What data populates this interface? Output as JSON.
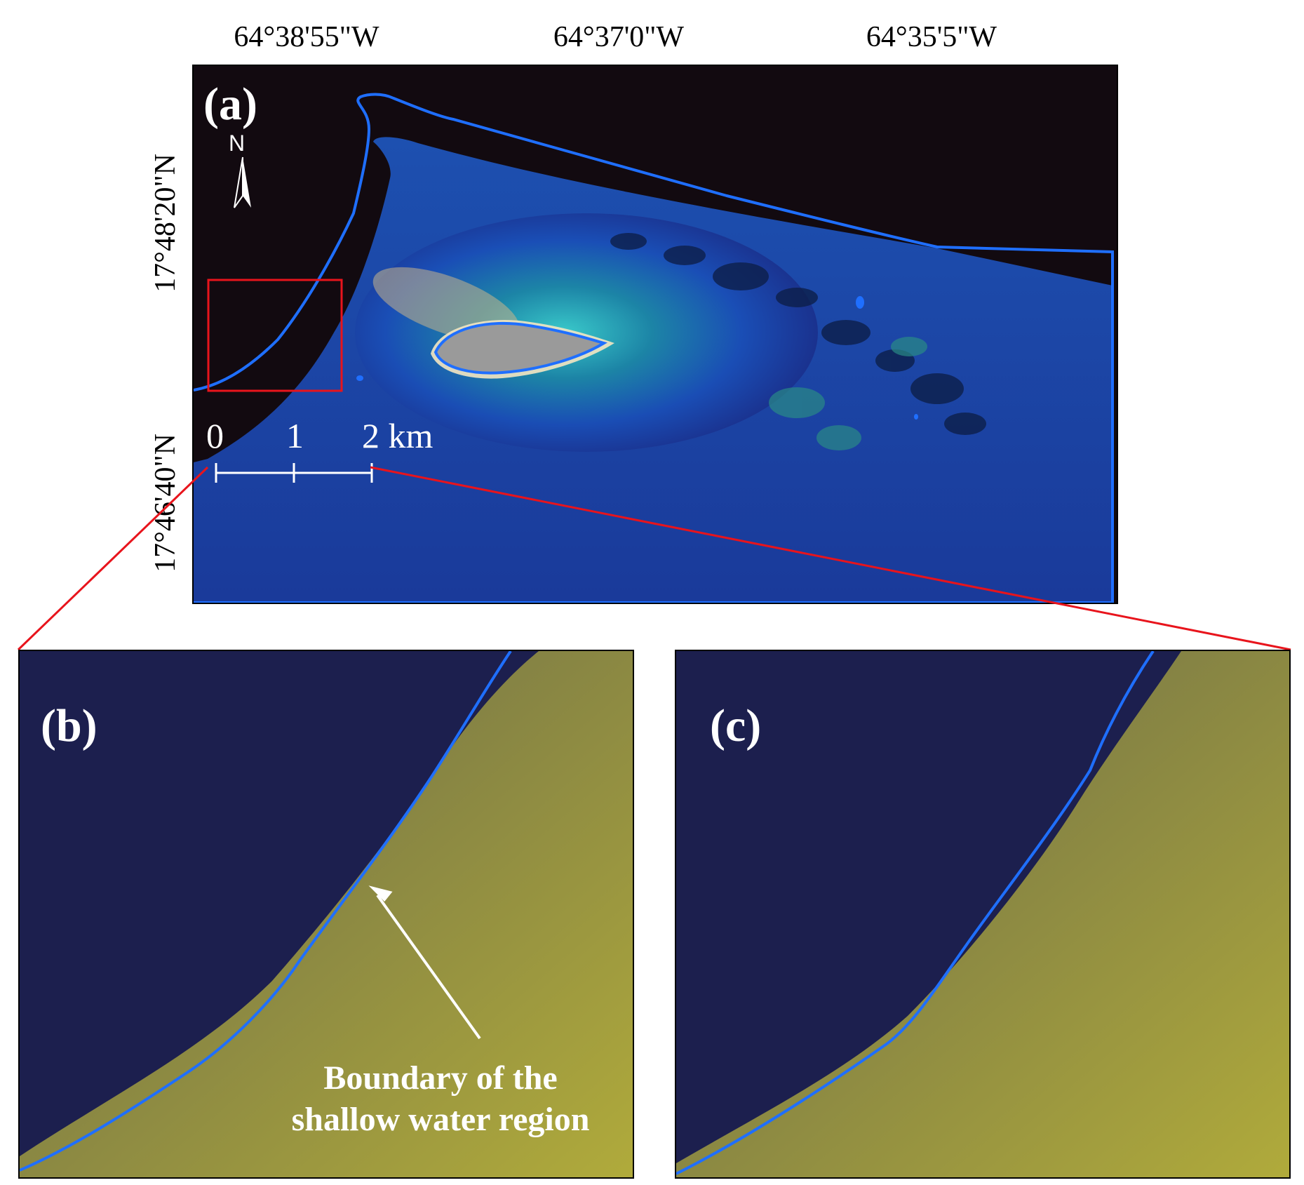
{
  "panels": {
    "a": {
      "label": "(a)"
    },
    "b": {
      "label": "(b)"
    },
    "c": {
      "label": "(c)"
    }
  },
  "map": {
    "top_coords": [
      "64°38'55\"W",
      "64°37'0\"W",
      "64°35'5\"W"
    ],
    "left_coords": [
      "17°48'20\"N",
      "17°46'40\"N"
    ],
    "north_label": "N",
    "scale_labels": [
      "0",
      "1",
      "2 km"
    ]
  },
  "annotation": {
    "line1": "Boundary of the",
    "line2": "shallow water region"
  },
  "colors": {
    "boundary": "#1f6fff",
    "inset_box": "#e8141c",
    "deep_water": "#120a10",
    "island": "#9a9a9a",
    "zoom_deep": "#1c1f4e",
    "zoom_shallow": "#b8b23a"
  }
}
